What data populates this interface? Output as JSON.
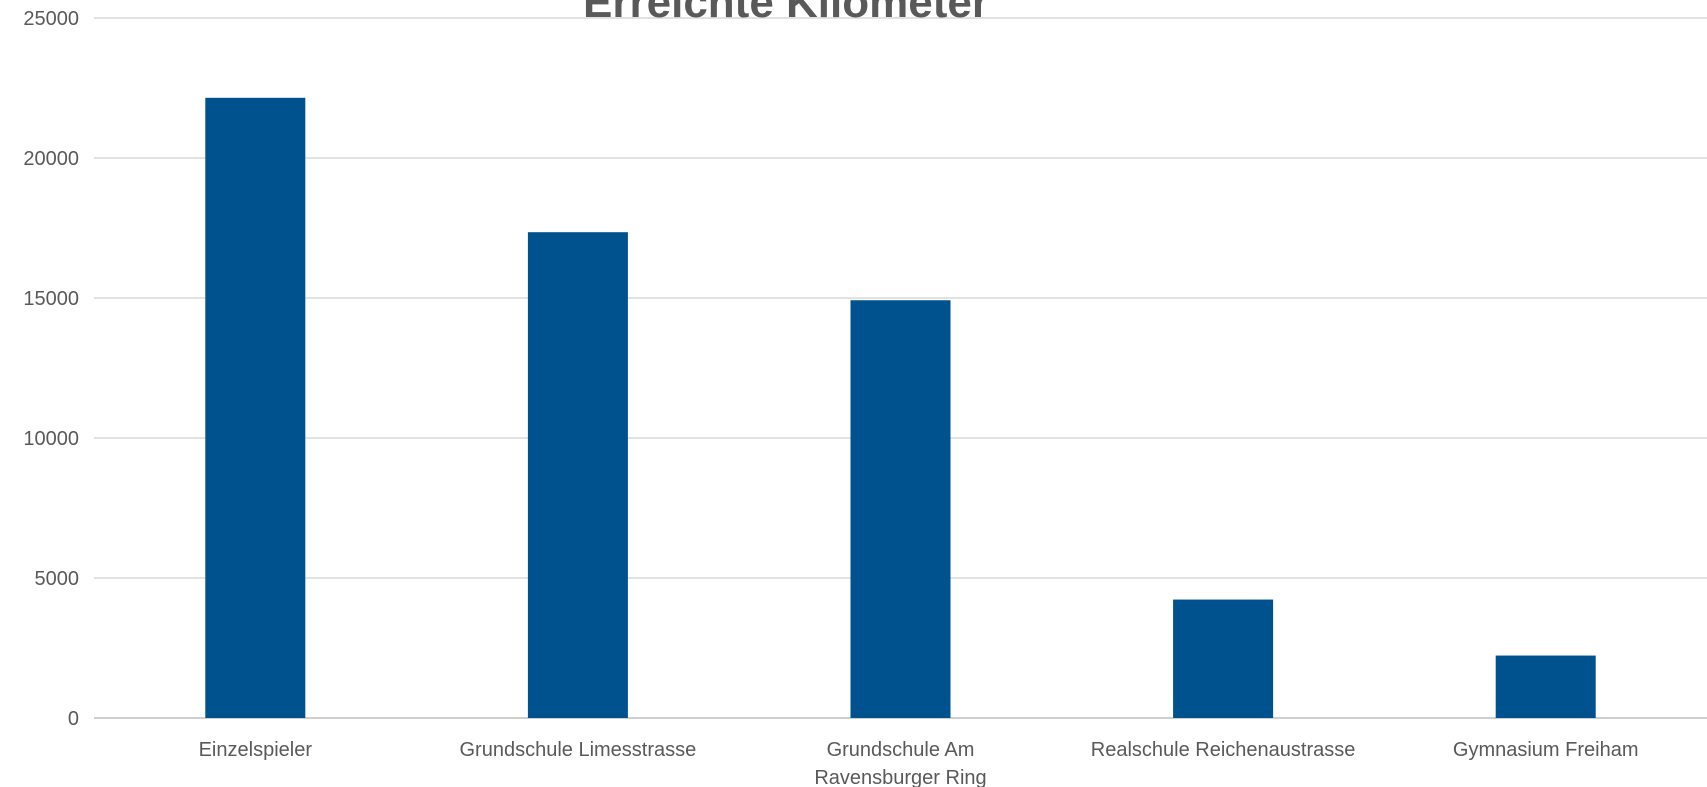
{
  "chart_data": {
    "type": "bar",
    "title": "Erreichte Kilometer",
    "categories": [
      "Einzelspieler",
      "Grundschule Limesstrasse",
      "Grundschule Am Ravensburger Ring",
      "Realschule Reichenaustrasse",
      "Gymnasium  Freiham"
    ],
    "category_lines": [
      [
        "Einzelspieler"
      ],
      [
        "Grundschule Limesstrasse"
      ],
      [
        "Grundschule Am",
        "Ravensburger Ring"
      ],
      [
        "Realschule Reichenaustrasse"
      ],
      [
        "Gymnasium  Freiham"
      ]
    ],
    "values": [
      22150,
      17350,
      14920,
      4230,
      2230
    ],
    "ylim": [
      0,
      25000
    ],
    "yticks": [
      0,
      5000,
      10000,
      15000,
      20000,
      25000
    ],
    "grid": true,
    "legend": "none",
    "bar_color": "#00528f"
  }
}
